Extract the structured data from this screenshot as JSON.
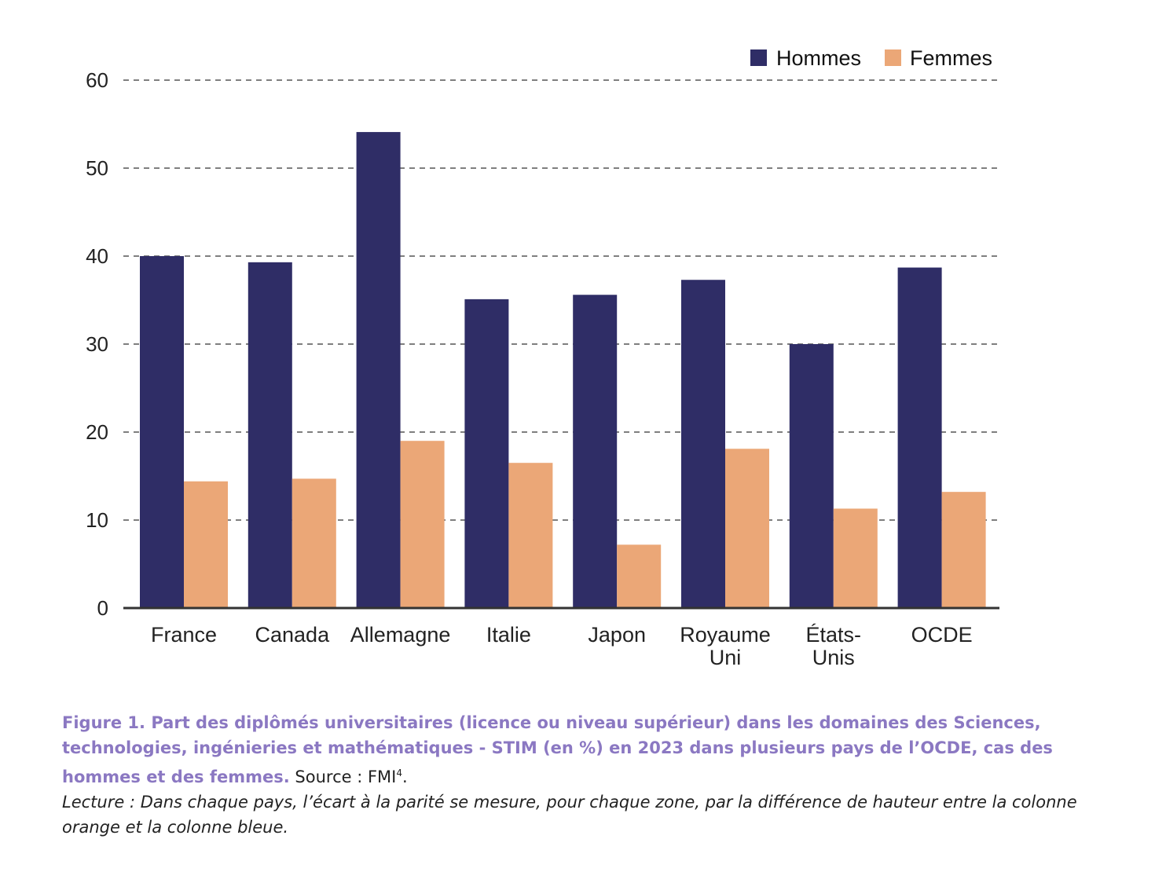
{
  "chart_data": {
    "type": "bar",
    "categories": [
      [
        "France"
      ],
      [
        "Canada"
      ],
      [
        "Allemagne"
      ],
      [
        "Italie"
      ],
      [
        "Japon"
      ],
      [
        "Royaume",
        "Uni"
      ],
      [
        "États-",
        "Unis"
      ],
      [
        "OCDE"
      ]
    ],
    "series": [
      {
        "name": "Hommes",
        "color": "#2f2d66",
        "values": [
          40,
          39.3,
          54.1,
          35.1,
          35.6,
          37.3,
          30,
          38.7
        ]
      },
      {
        "name": "Femmes",
        "color": "#eba777",
        "values": [
          14.4,
          14.7,
          19,
          16.5,
          7.2,
          18.1,
          11.3,
          13.2
        ]
      }
    ],
    "ylim": [
      0,
      60
    ],
    "yticks": [
      0,
      10,
      20,
      30,
      40,
      50,
      60
    ],
    "grid": true,
    "legend": "top-right"
  },
  "caption": {
    "title": "Figure 1. Part des diplômés universitaires (licence ou niveau supérieur) dans les domaines des Sciences, technologies, ingénieries et mathématiques - STIM (en %) en 2023 dans plusieurs pays de l’OCDE, cas des hommes et des femmes.",
    "source_text": "Source : FMI",
    "source_note": "4",
    "source_end": ".",
    "lecture": "Lecture : Dans chaque pays, l’écart à la parité se mesure, pour chaque zone, par la différence de hauteur entre la colonne orange et la colonne bleue."
  }
}
